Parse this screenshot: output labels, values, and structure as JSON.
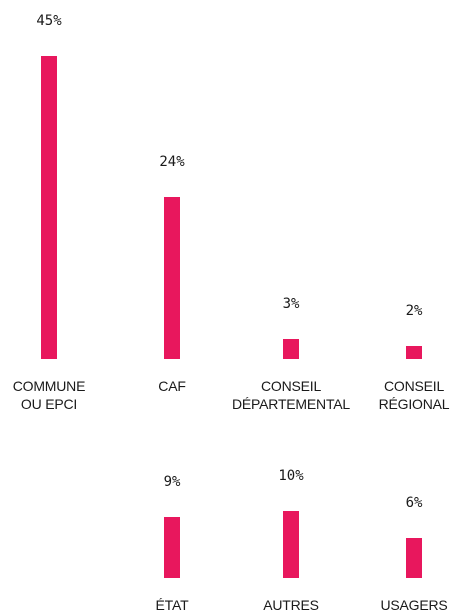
{
  "chart_data": {
    "type": "bar",
    "categories": [
      "COMMUNE OU EPCI",
      "CAF",
      "CONSEIL DÉPARTEMENTAL",
      "CONSEIL RÉGIONAL",
      "ÉTAT",
      "AUTRES",
      "USAGERS"
    ],
    "values": [
      45,
      24,
      3,
      2,
      9,
      10,
      6
    ],
    "value_labels": [
      "45%",
      "24%",
      "3%",
      "2%",
      "9%",
      "10%",
      "6%"
    ],
    "color": "#e8175d"
  }
}
